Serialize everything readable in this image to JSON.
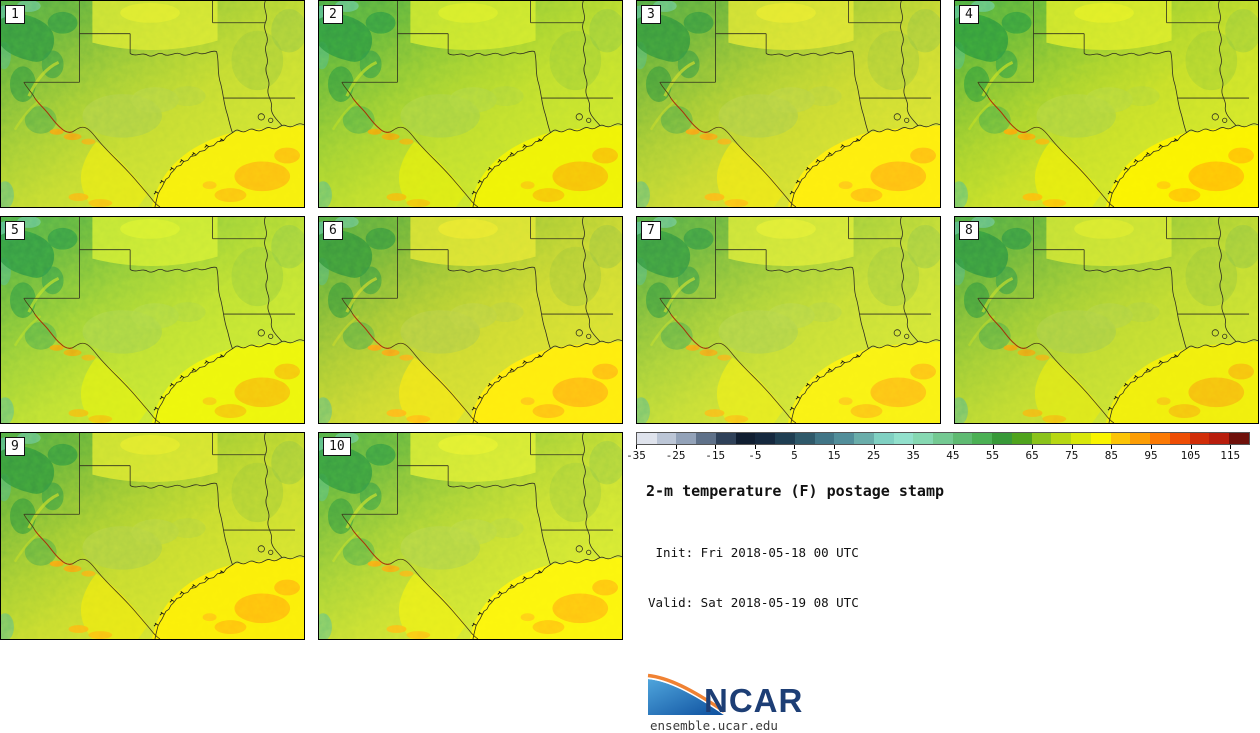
{
  "title": "2-m temperature (F) postage stamp",
  "init_line": " Init: Fri 2018-05-18 00 UTC",
  "valid_line": "Valid: Sat 2018-05-19 08 UTC",
  "panels": [
    {
      "label": "1"
    },
    {
      "label": "2"
    },
    {
      "label": "3"
    },
    {
      "label": "4"
    },
    {
      "label": "5"
    },
    {
      "label": "6"
    },
    {
      "label": "7"
    },
    {
      "label": "8"
    },
    {
      "label": "9"
    },
    {
      "label": "10"
    }
  ],
  "colorbar": {
    "min": -35,
    "max": 120,
    "interval": 5,
    "tick_values": [
      -35,
      -25,
      -15,
      -5,
      5,
      15,
      25,
      35,
      45,
      55,
      65,
      75,
      85,
      95,
      105,
      115
    ],
    "colors": [
      "#dfe3ec",
      "#bcc6d6",
      "#93a2b8",
      "#5f7189",
      "#2f4159",
      "#101e31",
      "#15283e",
      "#1f3e52",
      "#2f596a",
      "#417586",
      "#528e9a",
      "#6aadaa",
      "#80d0c2",
      "#92e0cc",
      "#86d8b2",
      "#74c992",
      "#5fba72",
      "#4bb054",
      "#389938",
      "#4fa31d",
      "#8bc31b",
      "#b7d713",
      "#d8e70b",
      "#f9f400",
      "#fcc406",
      "#fc9d04",
      "#fb7904",
      "#ee4d04",
      "#d12d08",
      "#b81d0c",
      "#6f100a"
    ]
  },
  "logo": {
    "text": "NCAR",
    "url": "ensemble.ucar.edu",
    "wordmark_color": "#1d3e75",
    "swoosh_blue": "#0d4f9e",
    "swoosh_orange": "#f08233"
  },
  "map_colors": {
    "land_yellow_green": "#cde038",
    "mountain_green": "#2f9242",
    "gulf_yellow": "#f7ef0e",
    "warm_orange": "#fcbd12",
    "border_line": "#2f2f20"
  },
  "chart_data": {
    "type": "heatmap",
    "title": "2-m temperature (F) postage stamp",
    "subtitle_lines": [
      "Init: Fri 2018-05-18 00 UTC",
      "Valid: Sat 2018-05-19 08 UTC"
    ],
    "panel_labels": [
      "1",
      "2",
      "3",
      "4",
      "5",
      "6",
      "7",
      "8",
      "9",
      "10"
    ],
    "units": "F",
    "colorbar_range": [
      -35,
      120
    ],
    "colorbar_interval": 5,
    "colorbar_tick_values": [
      -35,
      -25,
      -15,
      -5,
      5,
      15,
      25,
      35,
      45,
      55,
      65,
      75,
      85,
      95,
      105,
      115
    ],
    "colorbar_colors": [
      "#dfe3ec",
      "#bcc6d6",
      "#93a2b8",
      "#5f7189",
      "#2f4159",
      "#101e31",
      "#15283e",
      "#1f3e52",
      "#2f596a",
      "#417586",
      "#528e9a",
      "#6aadaa",
      "#80d0c2",
      "#92e0cc",
      "#86d8b2",
      "#74c992",
      "#5fba72",
      "#4bb054",
      "#389938",
      "#4fa31d",
      "#8bc31b",
      "#b7d713",
      "#d8e70b",
      "#f9f400",
      "#fcc406",
      "#fc9d04",
      "#fb7904",
      "#ee4d04",
      "#d12d08",
      "#b81d0c",
      "#6f100a"
    ],
    "legend_position": "bottom-right",
    "layout": "10 postage-stamp ensemble member maps, 4 + 4 + 2 grid",
    "credit": "ensemble.ucar.edu"
  }
}
